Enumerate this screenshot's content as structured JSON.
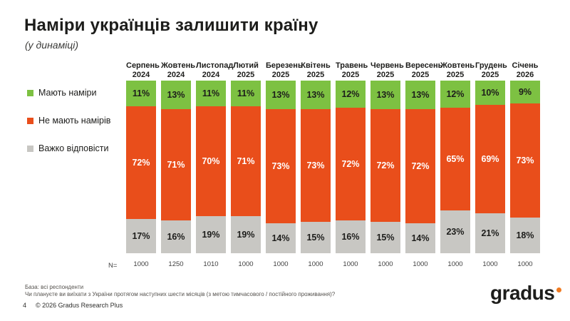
{
  "header": {
    "title": "Наміри українців залишити країну",
    "subtitle": "(у динаміці)"
  },
  "chart_data": {
    "type": "bar",
    "subtype": "stacked-100-percent",
    "title": "Наміри українців залишити країну (у динаміці)",
    "value_suffix": "%",
    "ylim": [
      0,
      100
    ],
    "legend_position": "left",
    "categories": [
      {
        "month": "Серпень",
        "year": "2024"
      },
      {
        "month": "Жовтень",
        "year": "2024"
      },
      {
        "month": "Листопад",
        "year": "2024"
      },
      {
        "month": "Лютий",
        "year": "2025"
      },
      {
        "month": "Березень",
        "year": "2025"
      },
      {
        "month": "Квітень",
        "year": "2025"
      },
      {
        "month": "Травень",
        "year": "2025"
      },
      {
        "month": "Червень",
        "year": "2025"
      },
      {
        "month": "Вересень",
        "year": "2025"
      },
      {
        "month": "Жовтень",
        "year": "2025"
      },
      {
        "month": "Грудень",
        "year": "2025"
      },
      {
        "month": "Січень",
        "year": "2026"
      }
    ],
    "series": [
      {
        "key": "intend",
        "name": "Мають наміри",
        "color": "#7dc142",
        "label_color": "#1d1d1b",
        "values": [
          11,
          13,
          11,
          11,
          13,
          13,
          12,
          13,
          13,
          12,
          10,
          9
        ]
      },
      {
        "key": "no-intend",
        "name": "Не мають намірів",
        "color": "#e94e1b",
        "label_color": "#ffffff",
        "values": [
          72,
          71,
          70,
          71,
          73,
          73,
          72,
          72,
          72,
          65,
          69,
          73
        ]
      },
      {
        "key": "hard-to-say",
        "name": "Важко відповісти",
        "color": "#c8c7c3",
        "label_color": "#1d1d1b",
        "values": [
          17,
          16,
          19,
          19,
          14,
          15,
          16,
          15,
          14,
          23,
          21,
          18
        ]
      }
    ],
    "n_label": "N=",
    "n_values": [
      1000,
      1250,
      1010,
      1000,
      1000,
      1000,
      1000,
      1000,
      1000,
      1000,
      1000,
      1000
    ]
  },
  "footer": {
    "base": "База: всі респонденти",
    "question": "Чи плануєте ви виїхати з України протягом наступних шести місяців (з метою тимчасового / постійного проживання)?",
    "page_number": "4",
    "copyright": "© 2026 Gradus Research Plus",
    "logo_text": "gradus",
    "logo_dot_color": "#f07a21"
  }
}
